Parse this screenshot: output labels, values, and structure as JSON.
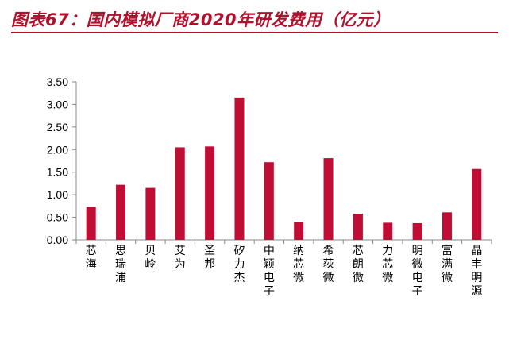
{
  "header": {
    "title": "图表67：国内模拟厂商2020年研发费用（亿元）"
  },
  "colors": {
    "accent": "#b0122e",
    "bar": "#c00d33",
    "axis": "#8a8a8a"
  },
  "chart_data": {
    "type": "bar",
    "title": "",
    "xlabel": "",
    "ylabel": "",
    "ylim": [
      0,
      3.5
    ],
    "yticks": [
      "3.50",
      "3.00",
      "2.50",
      "2.00",
      "1.50",
      "1.00",
      "0.50",
      "0.00"
    ],
    "categories": [
      "芯海",
      "思瑞浦",
      "贝岭",
      "艾为",
      "圣邦",
      "矽力杰",
      "中颖电子",
      "纳芯微",
      "希荻微",
      "芯朗微",
      "力芯微",
      "明微电子",
      "富满微",
      "晶丰明源"
    ],
    "values": [
      0.73,
      1.22,
      1.15,
      2.05,
      2.07,
      3.15,
      1.72,
      0.4,
      1.81,
      0.58,
      0.38,
      0.37,
      0.61,
      1.57
    ],
    "grid": false,
    "legend": "none"
  }
}
